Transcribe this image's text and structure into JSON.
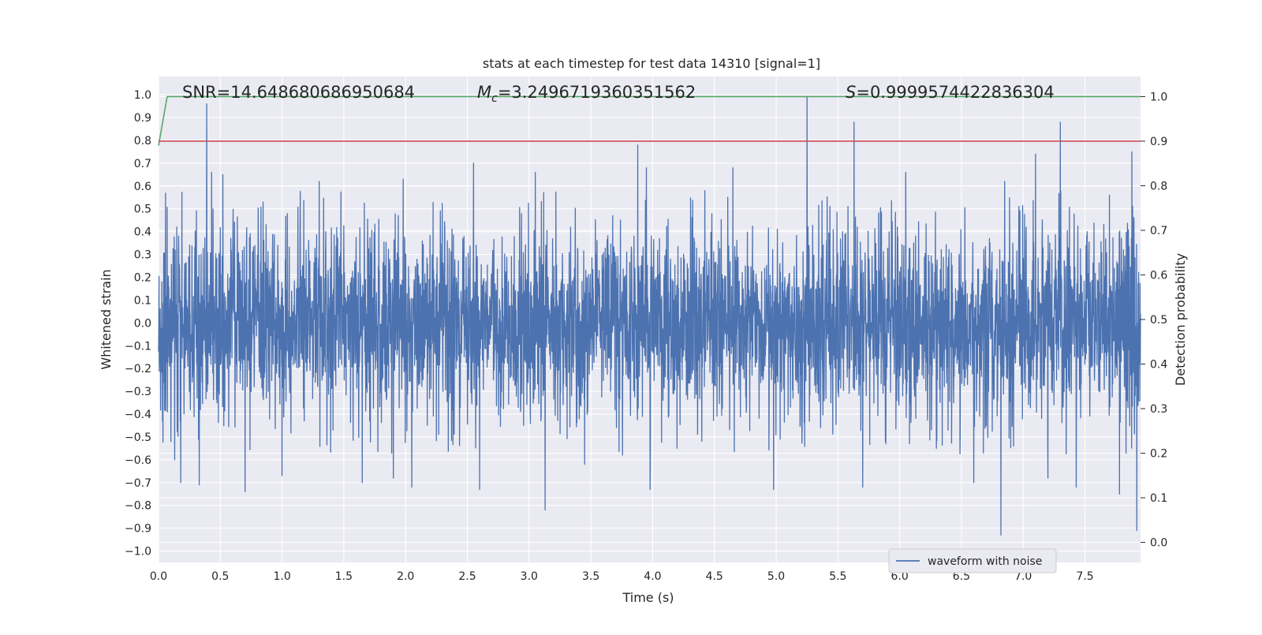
{
  "chart_data": {
    "type": "line",
    "title": "stats at each timestep for test data 14310 [signal=1]",
    "xlabel": "Time (s)",
    "ylabel": "Whitened strain",
    "y2label": "Detection probability",
    "xlim": [
      0.0,
      7.95
    ],
    "ylim": [
      -1.05,
      1.08
    ],
    "y2lim": [
      -0.045,
      1.045
    ],
    "xticks": [
      "0.0",
      "0.5",
      "1.0",
      "1.5",
      "2.0",
      "2.5",
      "3.0",
      "3.5",
      "4.0",
      "4.5",
      "5.0",
      "5.5",
      "6.0",
      "6.5",
      "7.0",
      "7.5"
    ],
    "yticks": [
      "1.0",
      "0.9",
      "0.8",
      "0.7",
      "0.6",
      "0.5",
      "0.4",
      "0.3",
      "0.2",
      "0.1",
      "0.0",
      "−0.1",
      "−0.2",
      "−0.3",
      "−0.4",
      "−0.5",
      "−0.6",
      "−0.7",
      "−0.8",
      "−0.9",
      "−1.0"
    ],
    "y2ticks": [
      "1.0",
      "0.9",
      "0.8",
      "0.7",
      "0.6",
      "0.5",
      "0.4",
      "0.3",
      "0.2",
      "0.1",
      "0.0"
    ],
    "grid": true,
    "legend_position": "lower-right",
    "annotations": {
      "snr": "SNR=14.648680686950684",
      "mc_symbol": "M",
      "mc_subscript": "c",
      "mc_value": "=3.2496719360351562",
      "s_symbol": "S",
      "s_value": "=0.9999574422836304"
    },
    "series": [
      {
        "name": "waveform with noise",
        "axis": "left",
        "color": "#4c72b0",
        "description_band": [
          -0.18,
          0.22
        ],
        "peaks_up": [
          [
            0.39,
            0.96
          ],
          [
            0.43,
            0.66
          ],
          [
            0.52,
            0.65
          ],
          [
            0.7,
            0.64
          ],
          [
            1.3,
            0.62
          ],
          [
            1.65,
            0.7
          ],
          [
            1.98,
            0.63
          ],
          [
            2.55,
            0.7
          ],
          [
            3.05,
            0.66
          ],
          [
            3.88,
            0.78
          ],
          [
            3.95,
            0.68
          ],
          [
            4.65,
            0.68
          ],
          [
            5.25,
            1.0
          ],
          [
            5.63,
            0.88
          ],
          [
            6.05,
            0.66
          ],
          [
            6.85,
            0.62
          ],
          [
            7.1,
            0.74
          ],
          [
            7.3,
            0.88
          ],
          [
            7.88,
            0.75
          ]
        ],
        "peaks_down": [
          [
            0.1,
            -0.52
          ],
          [
            0.13,
            -0.6
          ],
          [
            0.18,
            -0.7
          ],
          [
            0.33,
            -0.71
          ],
          [
            0.7,
            -0.74
          ],
          [
            1.0,
            -0.67
          ],
          [
            1.65,
            -0.7
          ],
          [
            1.9,
            -0.68
          ],
          [
            2.05,
            -0.72
          ],
          [
            2.6,
            -0.73
          ],
          [
            3.13,
            -0.82
          ],
          [
            3.45,
            -0.62
          ],
          [
            3.98,
            -0.73
          ],
          [
            4.98,
            -0.73
          ],
          [
            5.7,
            -0.72
          ],
          [
            6.6,
            -0.7
          ],
          [
            6.82,
            -0.93
          ],
          [
            7.2,
            -0.68
          ],
          [
            7.43,
            -0.72
          ],
          [
            7.78,
            -0.75
          ],
          [
            7.92,
            -0.91
          ]
        ]
      },
      {
        "name": "",
        "axis": "right",
        "color": "#55a868",
        "x": [
          0.0,
          0.07,
          7.95
        ],
        "y": [
          0.89,
          1.0,
          1.0
        ]
      },
      {
        "name": "",
        "axis": "right",
        "color": "#c44e52",
        "x": [
          0.0,
          7.95
        ],
        "y": [
          0.9,
          0.9
        ]
      }
    ]
  }
}
